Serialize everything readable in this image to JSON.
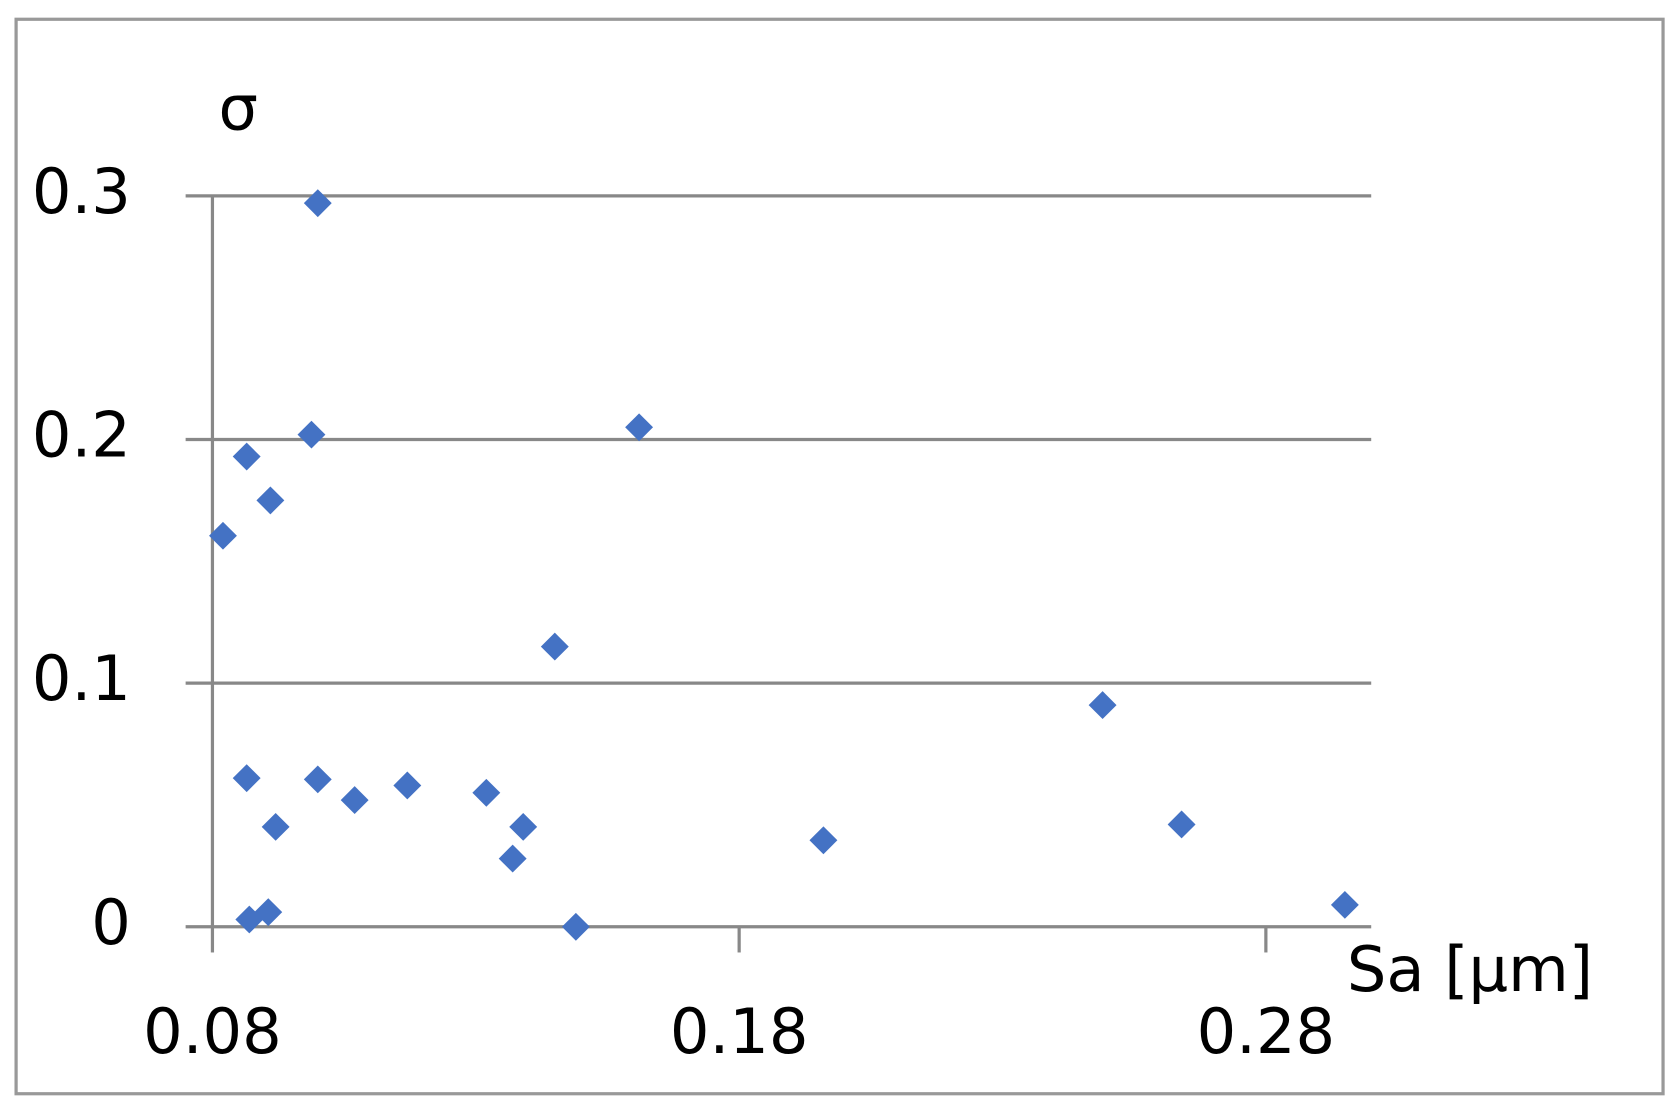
{
  "chart_data": {
    "type": "scatter",
    "x_label": "Sa [µm]",
    "y_label": "σ",
    "x": [
      0.082,
      0.0865,
      0.091,
      0.0988,
      0.1,
      0.0865,
      0.092,
      0.087,
      0.0906,
      0.1,
      0.107,
      0.117,
      0.132,
      0.137,
      0.139,
      0.145,
      0.149,
      0.161,
      0.196,
      0.249,
      0.264,
      0.295
    ],
    "values": [
      0.1605,
      0.193,
      0.175,
      0.202,
      0.297,
      0.061,
      0.041,
      0.003,
      0.006,
      0.0605,
      0.052,
      0.058,
      0.055,
      0.028,
      0.041,
      0.115,
      0.0,
      0.205,
      0.0355,
      0.091,
      0.042,
      0.009
    ],
    "color": "#4472c4",
    "xlim": [
      0.08,
      0.3
    ],
    "xticks": [
      0.08,
      0.18,
      0.28
    ],
    "ylim": [
      0,
      0.3
    ],
    "yticks": [
      0,
      0.1,
      0.2,
      0.3
    ],
    "grid": true
  }
}
